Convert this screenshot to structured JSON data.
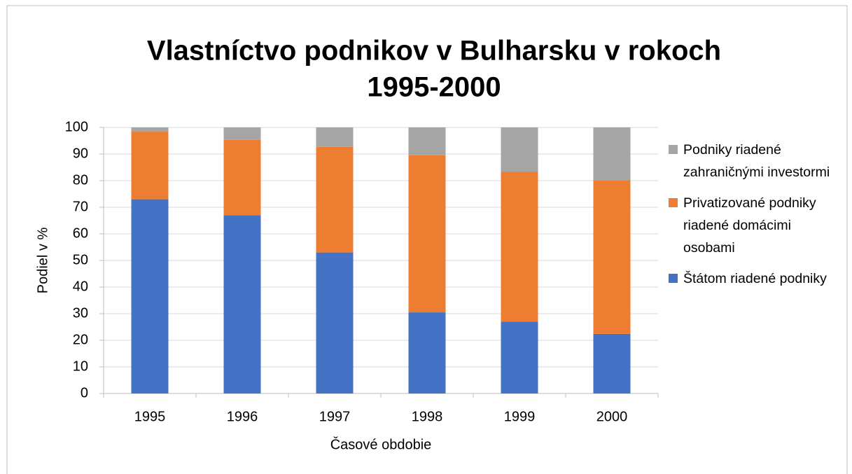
{
  "chart_data": {
    "type": "stacked_bar",
    "title": "Vlastníctvo podnikov v Bulharsku v rokoch 1995-2000",
    "x_label": "Časové obdobie",
    "y_label": "Podiel v %",
    "categories": [
      "1995",
      "1996",
      "1997",
      "1998",
      "1999",
      "2000"
    ],
    "series": [
      {
        "name": "Štátom riadené podniky",
        "color": "#4472c4",
        "values": [
          73,
          67,
          53,
          30.5,
          27,
          22.4
        ]
      },
      {
        "name": "Privatizované podniky riadené domácimi osobami",
        "color": "#ed7d31",
        "values": [
          25.4,
          28.3,
          39.7,
          59,
          56.4,
          57.6
        ]
      },
      {
        "name": "Podniky riadené zahraničnými investormi",
        "color": "#a5a5a5",
        "values": [
          1.6,
          4.7,
          7.3,
          10.5,
          16.6,
          20
        ]
      }
    ],
    "ylim": [
      0,
      100
    ],
    "yticks": [
      0,
      10,
      20,
      30,
      40,
      50,
      60,
      70,
      80,
      90,
      100
    ],
    "grid": true,
    "legend": "right"
  }
}
